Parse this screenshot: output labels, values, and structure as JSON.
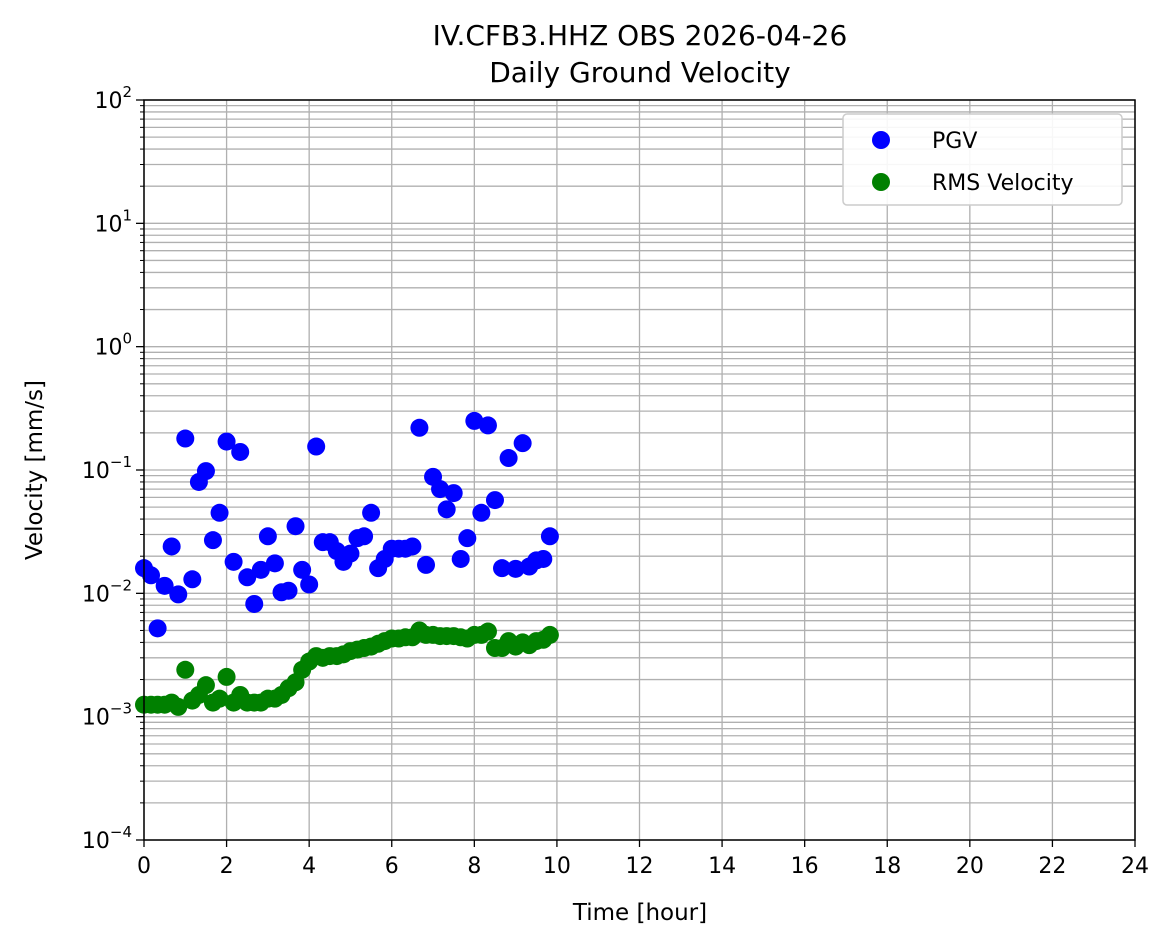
{
  "chart_data": {
    "type": "scatter",
    "title": "IV.CFB3.HHZ OBS 2026-04-26",
    "subtitle": "Daily Ground Velocity",
    "xlabel": "Time [hour]",
    "ylabel": "Velocity [mm/s]",
    "xlim": [
      0,
      24
    ],
    "ylim": [
      0.0001,
      100
    ],
    "yscale": "log",
    "grid": true,
    "legend_position": "top-right",
    "x_ticks": [
      "0",
      "2",
      "4",
      "6",
      "8",
      "10",
      "12",
      "14",
      "16",
      "18",
      "20",
      "22",
      "24"
    ],
    "y_ticks": [
      {
        "base": "10",
        "exp": "−4"
      },
      {
        "base": "10",
        "exp": "−3"
      },
      {
        "base": "10",
        "exp": "−2"
      },
      {
        "base": "10",
        "exp": "−1"
      },
      {
        "base": "10",
        "exp": "0"
      },
      {
        "base": "10",
        "exp": "1"
      },
      {
        "base": "10",
        "exp": "2"
      }
    ],
    "series": [
      {
        "name": "PGV",
        "color": "#0000ff",
        "x": [
          0.0,
          0.17,
          0.33,
          0.5,
          0.67,
          0.83,
          1.0,
          1.17,
          1.33,
          1.5,
          1.67,
          1.83,
          2.0,
          2.17,
          2.33,
          2.5,
          2.67,
          2.83,
          3.0,
          3.17,
          3.33,
          3.5,
          3.67,
          3.83,
          4.0,
          4.17,
          4.33,
          4.5,
          4.67,
          4.83,
          5.0,
          5.17,
          5.33,
          5.5,
          5.67,
          5.83,
          6.0,
          6.17,
          6.33,
          6.5,
          6.67,
          6.83,
          7.0,
          7.17,
          7.33,
          7.5,
          7.67,
          7.83,
          8.0,
          8.17,
          8.33,
          8.5,
          8.67,
          8.83,
          9.0,
          9.17,
          9.33,
          9.5,
          9.67,
          9.83
        ],
        "y": [
          0.016,
          0.014,
          0.0052,
          0.0115,
          0.024,
          0.0098,
          0.18,
          0.013,
          0.08,
          0.098,
          0.027,
          0.045,
          0.17,
          0.018,
          0.14,
          0.0135,
          0.0082,
          0.0155,
          0.029,
          0.0175,
          0.0102,
          0.0105,
          0.035,
          0.0155,
          0.0118,
          0.155,
          0.026,
          0.026,
          0.022,
          0.018,
          0.021,
          0.028,
          0.029,
          0.045,
          0.016,
          0.019,
          0.023,
          0.023,
          0.023,
          0.024,
          0.22,
          0.017,
          0.088,
          0.07,
          0.048,
          0.065,
          0.019,
          0.028,
          0.25,
          0.045,
          0.23,
          0.057,
          0.016,
          0.125,
          0.0158,
          0.165,
          0.0165,
          0.0185,
          0.019,
          0.029
        ]
      },
      {
        "name": "RMS Velocity",
        "color": "#008000",
        "x": [
          0.0,
          0.17,
          0.33,
          0.5,
          0.67,
          0.83,
          1.0,
          1.17,
          1.33,
          1.5,
          1.67,
          1.83,
          2.0,
          2.17,
          2.33,
          2.5,
          2.67,
          2.83,
          3.0,
          3.17,
          3.33,
          3.5,
          3.67,
          3.83,
          4.0,
          4.17,
          4.33,
          4.5,
          4.67,
          4.83,
          5.0,
          5.17,
          5.33,
          5.5,
          5.67,
          5.83,
          6.0,
          6.17,
          6.33,
          6.5,
          6.67,
          6.83,
          7.0,
          7.17,
          7.33,
          7.5,
          7.67,
          7.83,
          8.0,
          8.17,
          8.33,
          8.5,
          8.67,
          8.83,
          9.0,
          9.17,
          9.33,
          9.5,
          9.67,
          9.83
        ],
        "y": [
          0.00125,
          0.00125,
          0.00125,
          0.00125,
          0.0013,
          0.0012,
          0.0024,
          0.00135,
          0.0015,
          0.0018,
          0.0013,
          0.0014,
          0.0021,
          0.0013,
          0.0015,
          0.0013,
          0.0013,
          0.0013,
          0.0014,
          0.0014,
          0.0015,
          0.0017,
          0.0019,
          0.0024,
          0.0028,
          0.0031,
          0.003,
          0.0031,
          0.0031,
          0.0032,
          0.0034,
          0.0035,
          0.0036,
          0.0037,
          0.0039,
          0.0041,
          0.0043,
          0.0043,
          0.0044,
          0.0044,
          0.005,
          0.0046,
          0.0046,
          0.0045,
          0.0045,
          0.0045,
          0.0044,
          0.0043,
          0.0046,
          0.0046,
          0.0049,
          0.0036,
          0.0036,
          0.0041,
          0.0037,
          0.004,
          0.0038,
          0.0041,
          0.0042,
          0.0046
        ]
      }
    ]
  }
}
